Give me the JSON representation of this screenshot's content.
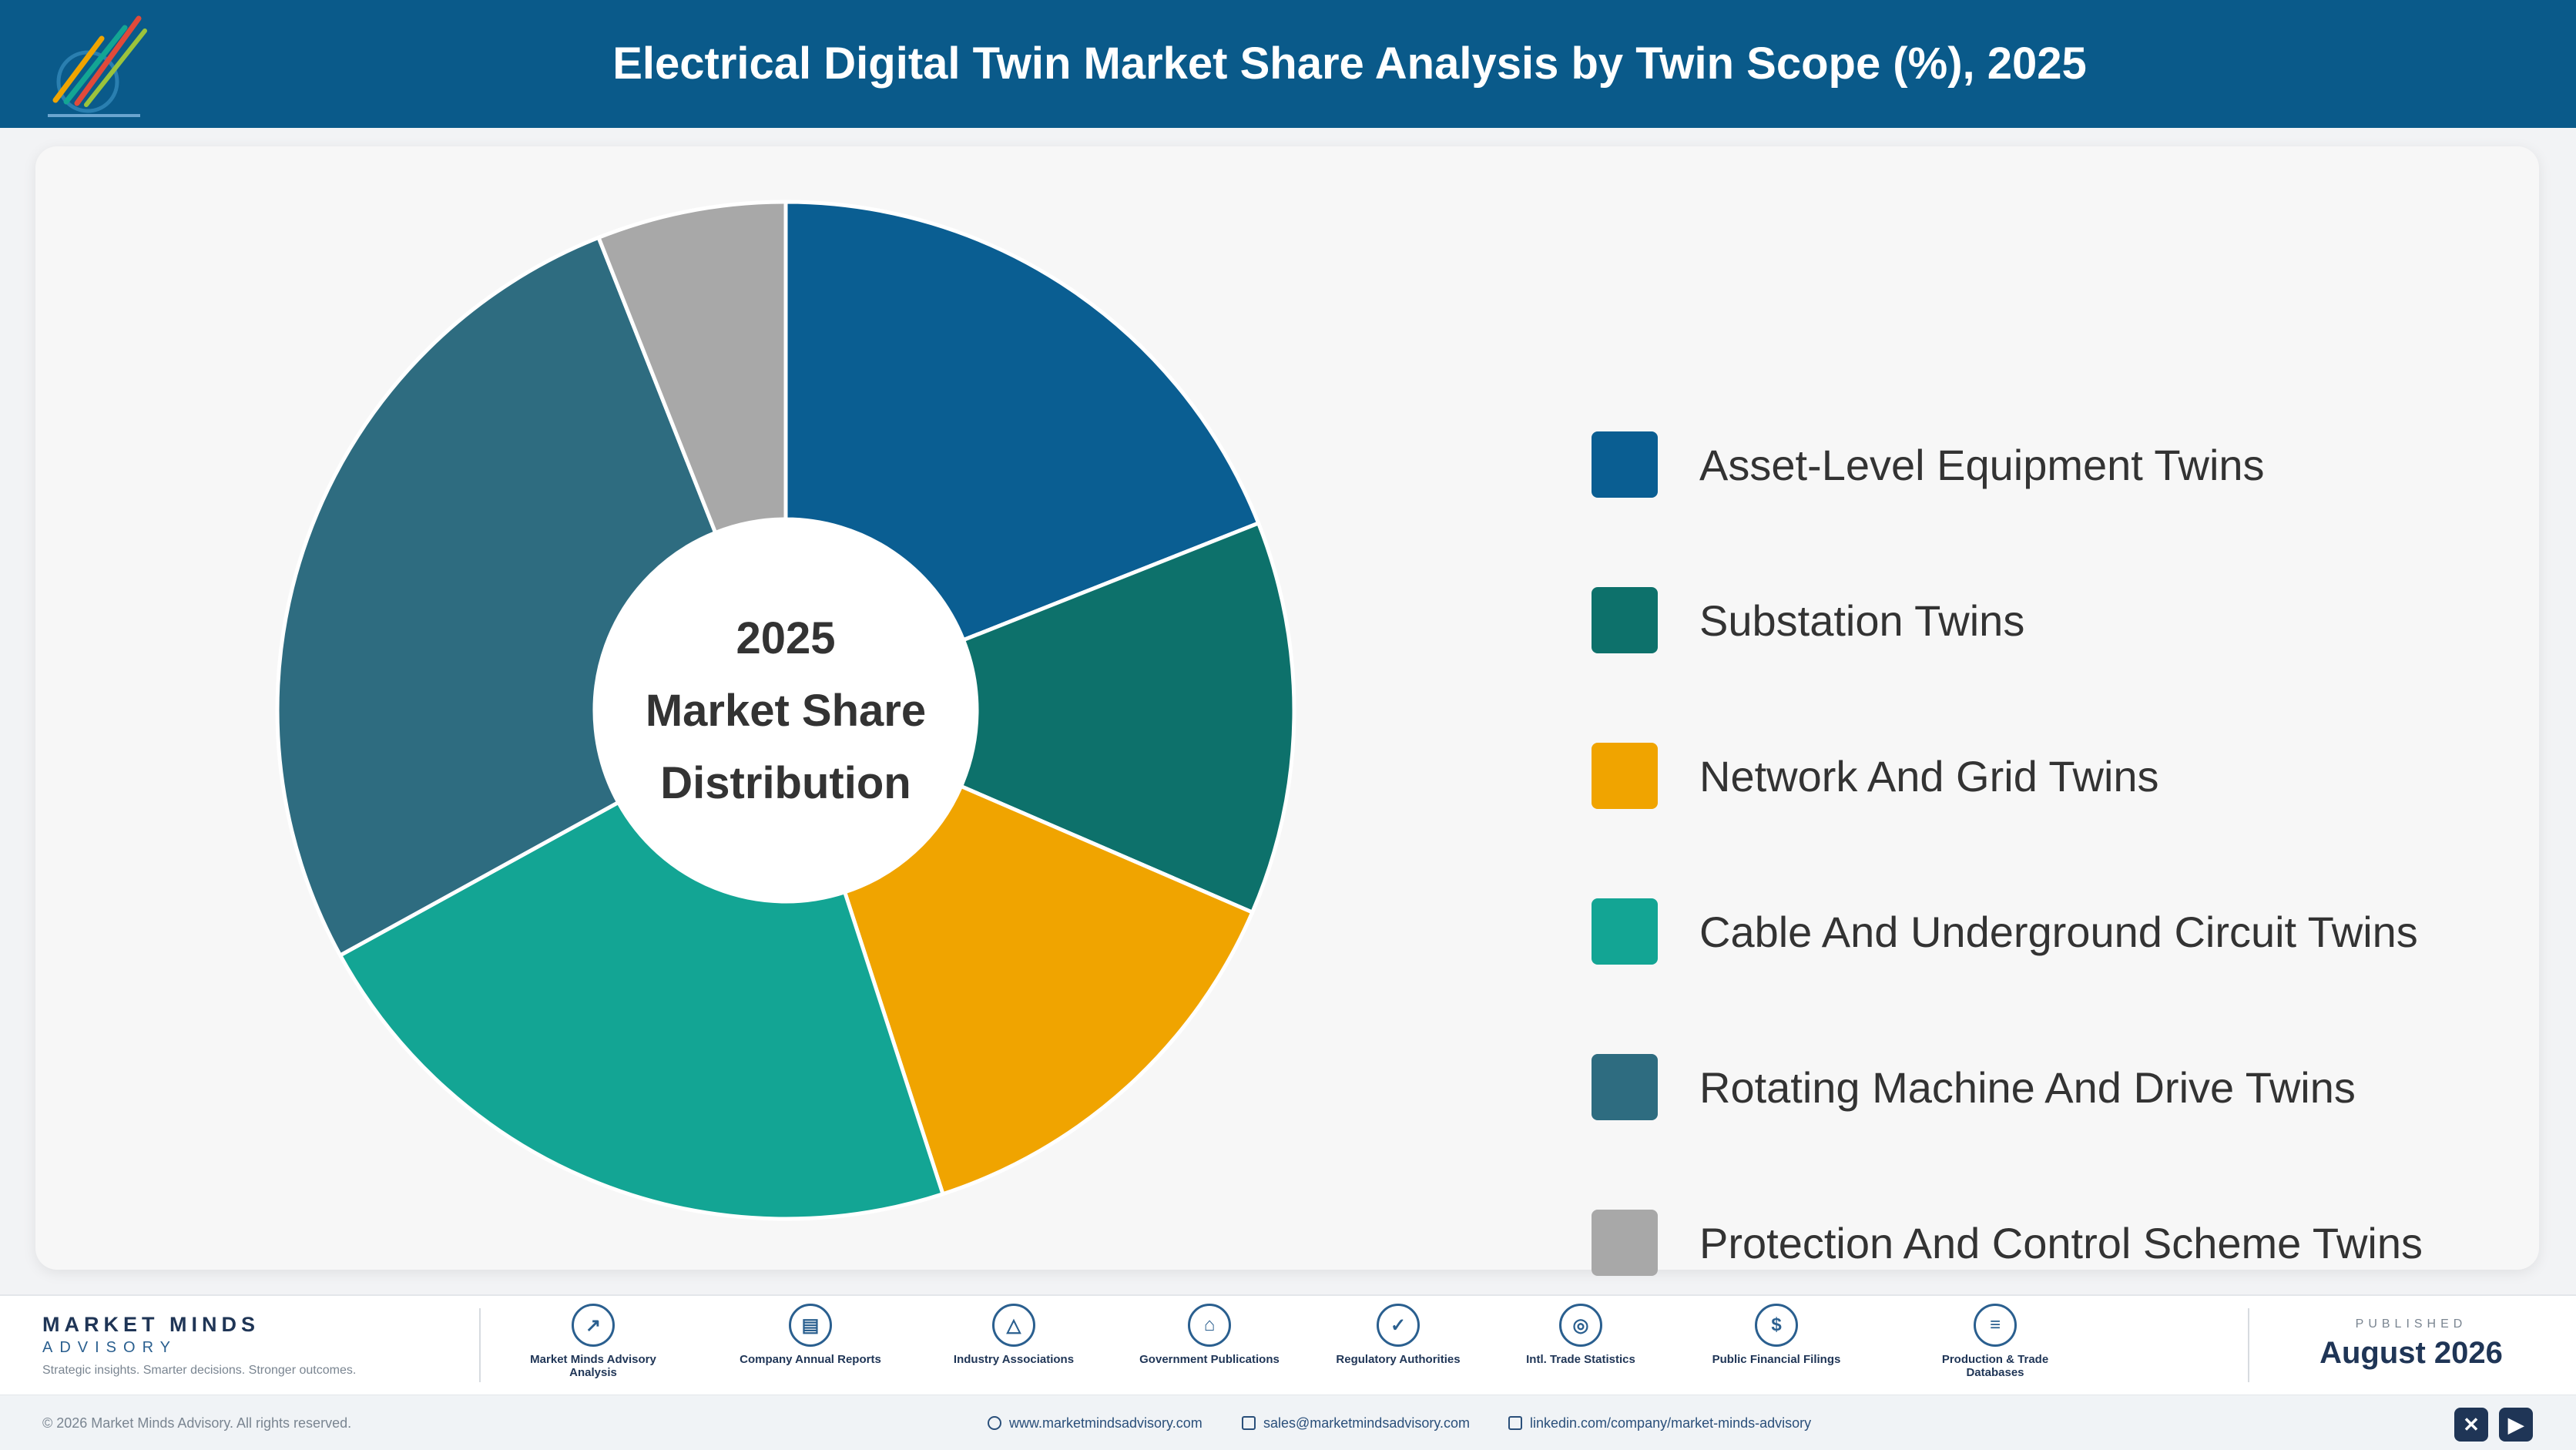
{
  "header": {
    "title": "Electrical Digital Twin Market Share Analysis by Twin Scope (%), 2025",
    "logo_icon": "market-minds-logo"
  },
  "chart_data": {
    "type": "pie",
    "style": "donut",
    "title": "Electrical Digital Twin Market Share Analysis by Twin Scope (%), 2025",
    "center_label": [
      "2025",
      "Market Share",
      "Distribution"
    ],
    "legend_position": "right",
    "categories": [
      "Asset-Level Equipment Twins",
      "Substation Twins",
      "Network And Grid Twins",
      "Cable And Underground Circuit Twins",
      "Rotating Machine And Drive Twins",
      "Protection And Control Scheme Twins"
    ],
    "values": [
      19.0,
      12.5,
      13.5,
      22.0,
      27.0,
      6.0
    ],
    "colors": [
      "#0a5e92",
      "#0d716b",
      "#f0a400",
      "#13a594",
      "#2e6c80",
      "#a8a8a8"
    ]
  },
  "footer": {
    "brand_name": "MARKET MINDS",
    "brand_sub": "ADVISORY",
    "brand_tagline": "Strategic insights. Smarter decisions. Stronger outcomes.",
    "sources": [
      {
        "label": "Market Minds Advisory Analysis",
        "icon": "chart-line-icon"
      },
      {
        "label": "Company Annual Reports",
        "icon": "document-icon"
      },
      {
        "label": "Industry Associations",
        "icon": "network-icon"
      },
      {
        "label": "Government Publications",
        "icon": "government-building-icon"
      },
      {
        "label": "Regulatory Authorities",
        "icon": "shield-check-icon"
      },
      {
        "label": "Intl. Trade Statistics",
        "icon": "globe-icon"
      },
      {
        "label": "Public Financial Filings",
        "icon": "dollar-coin-icon"
      },
      {
        "label": "Production & Trade Databases",
        "icon": "database-icon"
      }
    ],
    "published_label": "PUBLISHED",
    "published_date": "August 2026",
    "copyright": "© 2026 Market Minds Advisory. All rights reserved.",
    "website": "www.marketmindsadvisory.com",
    "email": "sales@marketmindsadvisory.com",
    "linkedin": "linkedin.com/company/market-minds-advisory"
  }
}
